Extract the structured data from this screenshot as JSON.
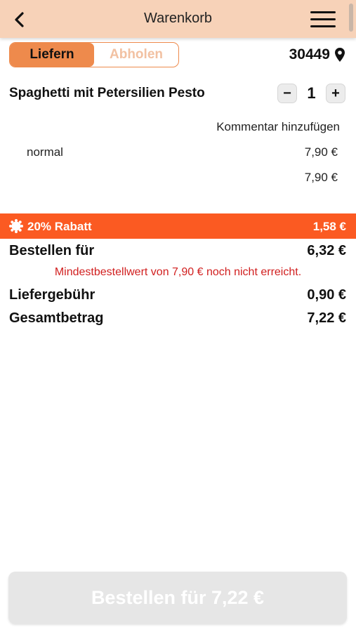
{
  "header": {
    "title": "Warenkorb",
    "back_icon": "chevron-left-icon",
    "menu_icon": "hamburger-menu-icon"
  },
  "delivery_toggle": {
    "options": [
      "Liefern",
      "Abholen"
    ],
    "selected": "Liefern"
  },
  "location": {
    "zip": "30449",
    "icon": "map-pin-icon"
  },
  "cart_item": {
    "name": "Spaghetti mit Petersilien Pesto",
    "quantity": "1",
    "minus_label": "−",
    "plus_label": "+",
    "comment_link": "Kommentar hinzufügen",
    "variant": "normal",
    "variant_price": "7,90 €",
    "item_total": "7,90 €"
  },
  "discount": {
    "label": "20% Rabatt",
    "amount": "1,58 €",
    "icon": "badge-sun-icon"
  },
  "summary": {
    "order_for_label": "Bestellen für",
    "order_for_value": "6,32 €",
    "min_order_warning": "Mindestbestellwert von 7,90 € noch nicht erreicht.",
    "delivery_fee_label": "Liefergebühr",
    "delivery_fee_value": "0,90 €",
    "total_label": "Gesamtbetrag",
    "total_value": "7,22 €"
  },
  "order_button": {
    "label": "Bestellen für 7,22 €",
    "enabled": false
  },
  "colors": {
    "header_bg": "#f7d2b8",
    "accent": "#ee8a4c",
    "discount_bg": "#fb5a22",
    "warning": "#d11f1f",
    "disabled_button": "#e6e6e6"
  }
}
